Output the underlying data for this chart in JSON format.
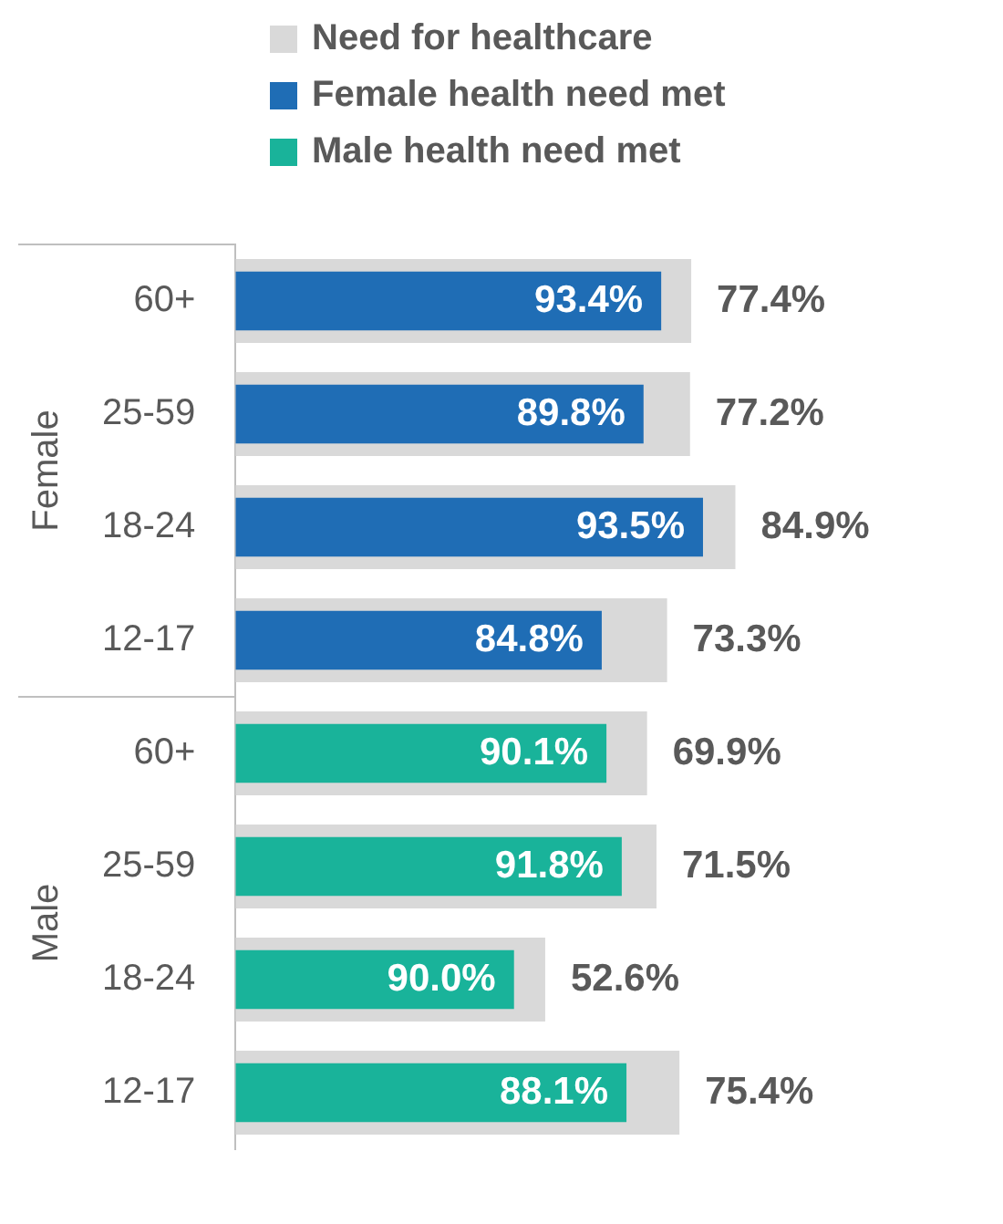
{
  "chart_data": {
    "type": "bar",
    "orientation": "horizontal",
    "legend": "top left",
    "categories": [
      "60+",
      "25-59",
      "18-24",
      "12-17",
      "60+",
      "25-59",
      "18-24",
      "12-17"
    ],
    "annotations": [
      "Female",
      "Male",
      "93.4%",
      "89.8%",
      "93.5%",
      "84.8%",
      "90.1%",
      "91.8%",
      "90.0%",
      "88.1%"
    ],
    "series": [
      {
        "name": "Need for healthcare",
        "color": "#d9d9d9",
        "values": [
          77.4,
          77.2,
          84.9,
          73.3,
          69.9,
          71.5,
          52.6,
          75.4
        ],
        "value_labels": [
          "77.4%",
          "77.2%",
          "84.9%",
          "73.3%",
          "69.9%",
          "71.5%",
          "52.6%",
          "75.4%"
        ]
      },
      {
        "name": "Female health need met",
        "color": "#1f6db5",
        "values": [
          72.3,
          69.3,
          79.4,
          62.2,
          null,
          null,
          null,
          null
        ]
      },
      {
        "name": "Male health need met",
        "color": "#19b39a",
        "values": [
          null,
          null,
          null,
          null,
          63.0,
          65.6,
          47.3,
          66.4
        ]
      }
    ]
  }
}
